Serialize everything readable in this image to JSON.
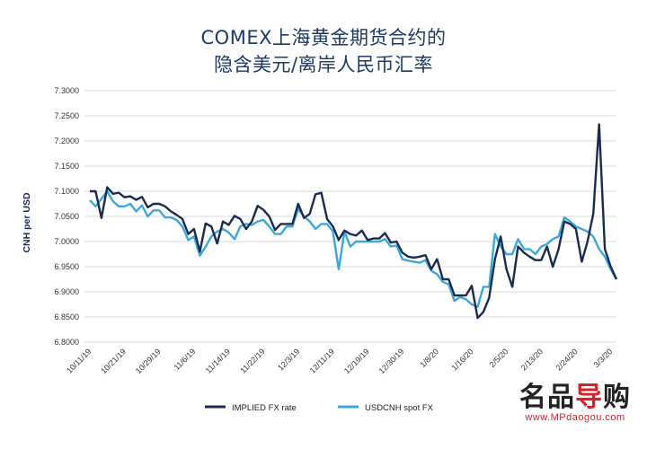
{
  "chart_data": {
    "type": "line",
    "title_line1": "COMEX上海黄金期货合约的",
    "title_line2": "隐含美元/离岸人民币汇率",
    "ylabel": "CNH per USD",
    "ylim": [
      6.8,
      7.3
    ],
    "yticks": [
      "7.3000",
      "7.2500",
      "7.2000",
      "7.1500",
      "7.1000",
      "7.0500",
      "7.0000",
      "6.9500",
      "6.9000",
      "6.8500",
      "6.8000"
    ],
    "xticks": [
      "10/11/19",
      "10/21/19",
      "10/29/19",
      "11/6/19",
      "11/14/19",
      "11/22/19",
      "12/3/19",
      "12/11/19",
      "12/19/19",
      "12/30/19",
      "1/8/20",
      "1/16/20",
      "2/5/20",
      "2/13/20",
      "2/24/20",
      "3/3/20"
    ],
    "grid": "horizontal",
    "legend_position": "bottom",
    "series": [
      {
        "name": "IMPLIED FX rate",
        "color": "#1a2b4c",
        "values": [
          7.1,
          7.1,
          7.047,
          7.108,
          7.095,
          7.097,
          7.088,
          7.09,
          7.083,
          7.089,
          7.068,
          7.075,
          7.075,
          7.07,
          7.06,
          7.053,
          7.045,
          7.015,
          7.025,
          6.98,
          7.036,
          7.03,
          6.996,
          7.04,
          7.033,
          7.051,
          7.045,
          7.025,
          7.04,
          7.071,
          7.063,
          7.05,
          7.023,
          7.035,
          7.035,
          7.035,
          7.075,
          7.047,
          7.055,
          7.094,
          7.097,
          7.045,
          7.03,
          7.003,
          7.022,
          7.015,
          7.012,
          7.022,
          7.003,
          7.006,
          7.006,
          7.017,
          6.998,
          7.0,
          6.978,
          6.97,
          6.968,
          6.97,
          6.973,
          6.945,
          6.965,
          6.925,
          6.925,
          6.893,
          6.893,
          6.893,
          6.912,
          6.848,
          6.86,
          6.888,
          6.965,
          7.01,
          6.945,
          6.91,
          6.99,
          6.978,
          6.97,
          6.963,
          6.963,
          6.99,
          6.95,
          6.985,
          7.04,
          7.035,
          7.025,
          6.96,
          7.0,
          7.055,
          7.233,
          6.985,
          6.95,
          6.925
        ]
      },
      {
        "name": "USDCNH spot FX",
        "color": "#3aa8dc",
        "values": [
          7.082,
          7.07,
          7.085,
          7.1,
          7.08,
          7.07,
          7.07,
          7.075,
          7.06,
          7.072,
          7.05,
          7.062,
          7.062,
          7.048,
          7.048,
          7.043,
          7.03,
          7.003,
          7.01,
          6.972,
          6.99,
          7.01,
          7.02,
          7.025,
          7.018,
          7.005,
          7.03,
          7.035,
          7.033,
          7.04,
          7.043,
          7.03,
          7.015,
          7.015,
          7.03,
          7.03,
          7.065,
          7.05,
          7.04,
          7.025,
          7.035,
          7.035,
          7.02,
          6.945,
          7.02,
          6.99,
          7.0,
          7.0,
          7.0,
          7.0,
          7.0,
          7.005,
          6.99,
          6.992,
          6.965,
          6.962,
          6.96,
          6.958,
          6.963,
          6.942,
          6.935,
          6.92,
          6.915,
          6.882,
          6.89,
          6.885,
          6.875,
          6.87,
          6.91,
          6.91,
          7.015,
          6.99,
          6.975,
          6.975,
          7.005,
          6.985,
          6.985,
          6.975,
          6.99,
          6.995,
          7.005,
          7.01,
          7.048,
          7.04,
          7.03,
          7.025,
          7.02,
          7.01,
          6.985,
          6.97,
          6.945,
          6.925
        ]
      }
    ]
  },
  "watermark": {
    "main_a": "名品",
    "main_b": "导",
    "main_c": "购",
    "url": "www.MPdaogou.com"
  }
}
